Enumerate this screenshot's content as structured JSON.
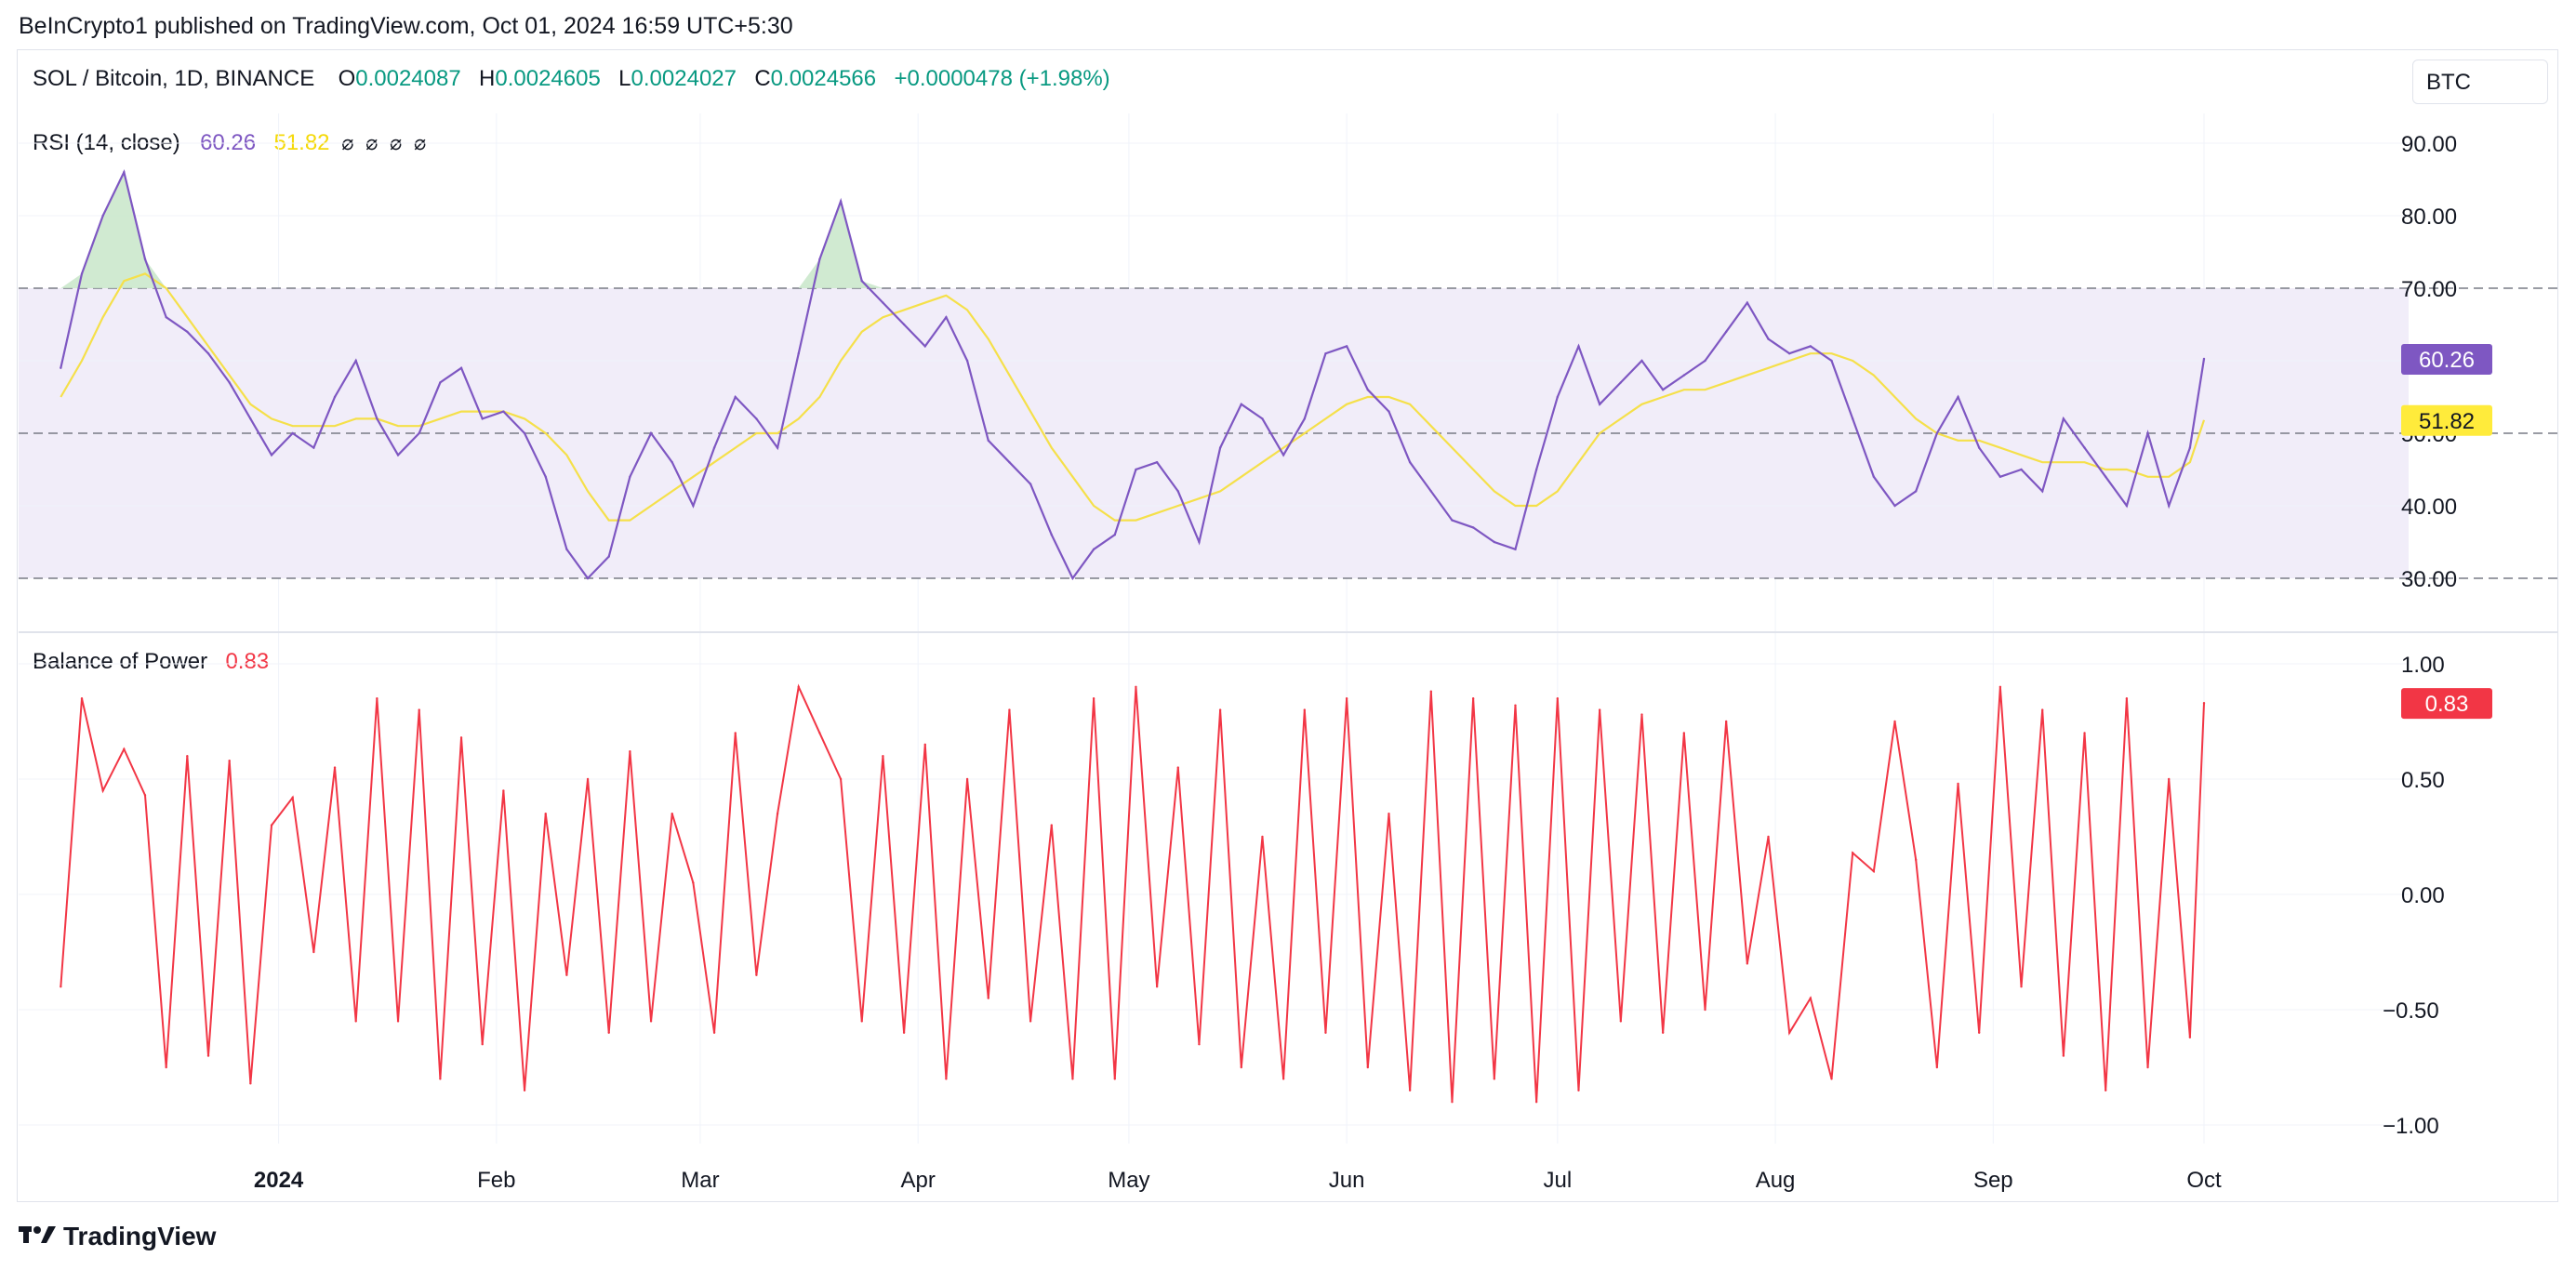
{
  "publisher_line": "BeInCrypto1 published on TradingView.com, Oct 01, 2024 16:59 UTC+5:30",
  "symbol": {
    "title": "SOL / Bitcoin, 1D, BINANCE",
    "open_label": "O",
    "open": "0.0024087",
    "high_label": "H",
    "high": "0.0024605",
    "low_label": "L",
    "low": "0.0024027",
    "close_label": "C",
    "close": "0.0024566",
    "change": "+0.0000478 (+1.98%)"
  },
  "currency_button": "BTC",
  "footer_brand": "TradingView",
  "colors": {
    "rsi_line": "#7e57c2",
    "rsi_ma": "#ffeb3b",
    "rsi_band": "#f1edf9",
    "bop_line": "#f23645",
    "up_value": "#089981",
    "overbought_fill": "#c8e6c9"
  },
  "rsi_pane": {
    "label": "RSI (14, close)",
    "value": "60.26",
    "ma_value": "51.82",
    "icons": [
      "no-symbol-icon",
      "no-symbol-icon",
      "no-symbol-icon",
      "no-symbol-icon"
    ],
    "ticks": [
      "90.00",
      "80.00",
      "70.00",
      "60.00",
      "50.00",
      "40.00",
      "30.00"
    ]
  },
  "bop_pane": {
    "label": "Balance of Power",
    "value": "0.83",
    "ticks": [
      "1.00",
      "0.50",
      "0.00",
      "−0.50",
      "−1.00"
    ]
  },
  "x_axis": {
    "labels": [
      "2024",
      "Feb",
      "Mar",
      "Apr",
      "May",
      "Jun",
      "Jul",
      "Aug",
      "Sep",
      "Oct"
    ]
  },
  "chart_data": [
    {
      "type": "line",
      "title": "RSI (14, close)",
      "x": [
        "2023-12-01",
        "2023-12-04",
        "2023-12-07",
        "2023-12-10",
        "2023-12-13",
        "2023-12-16",
        "2023-12-19",
        "2023-12-22",
        "2023-12-25",
        "2023-12-28",
        "2023-12-31",
        "2024-01-03",
        "2024-01-06",
        "2024-01-09",
        "2024-01-12",
        "2024-01-15",
        "2024-01-18",
        "2024-01-21",
        "2024-01-24",
        "2024-01-27",
        "2024-01-30",
        "2024-02-02",
        "2024-02-05",
        "2024-02-08",
        "2024-02-11",
        "2024-02-14",
        "2024-02-17",
        "2024-02-20",
        "2024-02-23",
        "2024-02-26",
        "2024-02-29",
        "2024-03-03",
        "2024-03-06",
        "2024-03-09",
        "2024-03-12",
        "2024-03-15",
        "2024-03-18",
        "2024-03-21",
        "2024-03-24",
        "2024-03-27",
        "2024-03-30",
        "2024-04-02",
        "2024-04-05",
        "2024-04-08",
        "2024-04-11",
        "2024-04-14",
        "2024-04-17",
        "2024-04-20",
        "2024-04-23",
        "2024-04-26",
        "2024-04-29",
        "2024-05-02",
        "2024-05-05",
        "2024-05-08",
        "2024-05-11",
        "2024-05-14",
        "2024-05-17",
        "2024-05-20",
        "2024-05-23",
        "2024-05-26",
        "2024-05-29",
        "2024-06-01",
        "2024-06-04",
        "2024-06-07",
        "2024-06-10",
        "2024-06-13",
        "2024-06-16",
        "2024-06-19",
        "2024-06-22",
        "2024-06-25",
        "2024-06-28",
        "2024-07-01",
        "2024-07-04",
        "2024-07-07",
        "2024-07-10",
        "2024-07-13",
        "2024-07-16",
        "2024-07-19",
        "2024-07-22",
        "2024-07-25",
        "2024-07-28",
        "2024-07-31",
        "2024-08-03",
        "2024-08-06",
        "2024-08-09",
        "2024-08-12",
        "2024-08-15",
        "2024-08-18",
        "2024-08-21",
        "2024-08-24",
        "2024-08-27",
        "2024-08-30",
        "2024-09-02",
        "2024-09-05",
        "2024-09-08",
        "2024-09-11",
        "2024-09-14",
        "2024-09-17",
        "2024-09-20",
        "2024-09-23",
        "2024-09-26",
        "2024-09-29",
        "2024-10-01"
      ],
      "series": [
        {
          "values": [
            59,
            72,
            80,
            86,
            74,
            66,
            64,
            61,
            57,
            52,
            47,
            50,
            48,
            55,
            60,
            52,
            47,
            50,
            57,
            59,
            52,
            53,
            50,
            44,
            34,
            30,
            33,
            44,
            50,
            46,
            40,
            48,
            55,
            52,
            48,
            61,
            74,
            82,
            71,
            68,
            65,
            62,
            66,
            60,
            49,
            46,
            43,
            36,
            30,
            34,
            36,
            45,
            46,
            42,
            35,
            48,
            54,
            52,
            47,
            52,
            61,
            62,
            56,
            53,
            46,
            42,
            38,
            37,
            35,
            34,
            45,
            55,
            62,
            54,
            57,
            60,
            56,
            58,
            60,
            64,
            68,
            63,
            61,
            62,
            60,
            52,
            44,
            40,
            42,
            50,
            55,
            48,
            44,
            45,
            42,
            52,
            48,
            44,
            40,
            50,
            40,
            48,
            60.26
          ]
        },
        {
          "values": [
            55,
            60,
            66,
            71,
            72,
            70,
            66,
            62,
            58,
            54,
            52,
            51,
            51,
            51,
            52,
            52,
            51,
            51,
            52,
            53,
            53,
            53,
            52,
            50,
            47,
            42,
            38,
            38,
            40,
            42,
            44,
            46,
            48,
            50,
            50,
            52,
            55,
            60,
            64,
            66,
            67,
            68,
            69,
            67,
            63,
            58,
            53,
            48,
            44,
            40,
            38,
            38,
            39,
            40,
            41,
            42,
            44,
            46,
            48,
            50,
            52,
            54,
            55,
            55,
            54,
            51,
            48,
            45,
            42,
            40,
            40,
            42,
            46,
            50,
            52,
            54,
            55,
            56,
            56,
            57,
            58,
            59,
            60,
            61,
            61,
            60,
            58,
            55,
            52,
            50,
            49,
            49,
            48,
            47,
            46,
            46,
            46,
            45,
            45,
            44,
            44,
            46,
            51.82
          ]
        }
      ],
      "ylim": [
        25,
        95
      ],
      "levels": [
        70,
        50,
        30
      ]
    },
    {
      "type": "line",
      "title": "Balance of Power",
      "x": [
        "2023-12-01",
        "2023-12-04",
        "2023-12-07",
        "2023-12-10",
        "2023-12-13",
        "2023-12-16",
        "2023-12-19",
        "2023-12-22",
        "2023-12-25",
        "2023-12-28",
        "2023-12-31",
        "2024-01-03",
        "2024-01-06",
        "2024-01-09",
        "2024-01-12",
        "2024-01-15",
        "2024-01-18",
        "2024-01-21",
        "2024-01-24",
        "2024-01-27",
        "2024-01-30",
        "2024-02-02",
        "2024-02-05",
        "2024-02-08",
        "2024-02-11",
        "2024-02-14",
        "2024-02-17",
        "2024-02-20",
        "2024-02-23",
        "2024-02-26",
        "2024-02-29",
        "2024-03-03",
        "2024-03-06",
        "2024-03-09",
        "2024-03-12",
        "2024-03-15",
        "2024-03-18",
        "2024-03-21",
        "2024-03-24",
        "2024-03-27",
        "2024-03-30",
        "2024-04-02",
        "2024-04-05",
        "2024-04-08",
        "2024-04-11",
        "2024-04-14",
        "2024-04-17",
        "2024-04-20",
        "2024-04-23",
        "2024-04-26",
        "2024-04-29",
        "2024-05-02",
        "2024-05-05",
        "2024-05-08",
        "2024-05-11",
        "2024-05-14",
        "2024-05-17",
        "2024-05-20",
        "2024-05-23",
        "2024-05-26",
        "2024-05-29",
        "2024-06-01",
        "2024-06-04",
        "2024-06-07",
        "2024-06-10",
        "2024-06-13",
        "2024-06-16",
        "2024-06-19",
        "2024-06-22",
        "2024-06-25",
        "2024-06-28",
        "2024-07-01",
        "2024-07-04",
        "2024-07-07",
        "2024-07-10",
        "2024-07-13",
        "2024-07-16",
        "2024-07-19",
        "2024-07-22",
        "2024-07-25",
        "2024-07-28",
        "2024-07-31",
        "2024-08-03",
        "2024-08-06",
        "2024-08-09",
        "2024-08-12",
        "2024-08-15",
        "2024-08-18",
        "2024-08-21",
        "2024-08-24",
        "2024-08-27",
        "2024-08-30",
        "2024-09-02",
        "2024-09-05",
        "2024-09-08",
        "2024-09-11",
        "2024-09-14",
        "2024-09-17",
        "2024-09-20",
        "2024-09-23",
        "2024-09-26",
        "2024-09-29",
        "2024-10-01"
      ],
      "series": [
        {
          "values": [
            -0.4,
            0.85,
            0.45,
            0.63,
            0.43,
            -0.75,
            0.6,
            -0.7,
            0.58,
            -0.82,
            0.3,
            0.42,
            -0.25,
            0.55,
            -0.55,
            0.85,
            -0.55,
            0.8,
            -0.8,
            0.68,
            -0.65,
            0.45,
            -0.85,
            0.35,
            -0.35,
            0.5,
            -0.6,
            0.62,
            -0.55,
            0.35,
            0.05,
            -0.6,
            0.7,
            -0.35,
            0.35,
            0.9,
            0.7,
            0.5,
            -0.55,
            0.6,
            -0.6,
            0.65,
            -0.8,
            0.5,
            -0.45,
            0.8,
            -0.55,
            0.3,
            -0.8,
            0.85,
            -0.8,
            0.9,
            -0.4,
            0.55,
            -0.65,
            0.8,
            -0.75,
            0.25,
            -0.8,
            0.8,
            -0.6,
            0.85,
            -0.75,
            0.35,
            -0.85,
            0.88,
            -0.9,
            0.85,
            -0.8,
            0.82,
            -0.9,
            0.85,
            -0.85,
            0.8,
            -0.55,
            0.78,
            -0.6,
            0.7,
            -0.5,
            0.75,
            -0.3,
            0.25,
            -0.6,
            -0.45,
            -0.8,
            0.18,
            0.1,
            0.75,
            0.15,
            -0.75,
            0.48,
            -0.6,
            0.9,
            -0.4,
            0.8,
            -0.7,
            0.7,
            -0.85,
            0.85,
            -0.75,
            0.5,
            -0.62,
            0.83
          ]
        }
      ],
      "ylim": [
        -1.1,
        1.1
      ]
    }
  ]
}
